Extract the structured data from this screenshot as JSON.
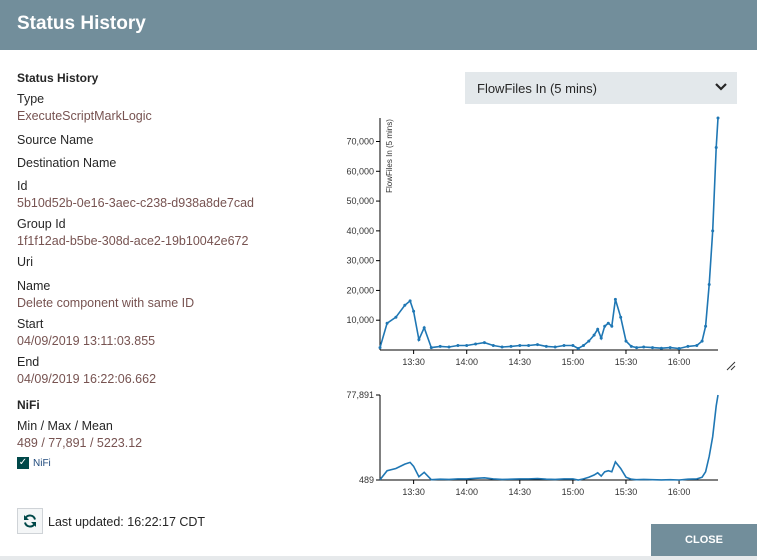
{
  "dialog": {
    "title": "Status History"
  },
  "details": {
    "section_title": "Status History",
    "type_label": "Type",
    "type_value": "ExecuteScriptMarkLogic",
    "source_label": "Source Name",
    "destination_label": "Destination Name",
    "id_label": "Id",
    "id_value": "5b10d52b-0e16-3aec-c238-d938a8de7cad",
    "group_label": "Group Id",
    "group_value": "1f1f12ad-b5be-308d-ace2-19b10042e672",
    "uri_label": "Uri",
    "name_label": "Name",
    "name_value": "Delete component with same ID",
    "start_label": "Start",
    "start_value": "04/09/2019 13:11:03.855",
    "end_label": "End",
    "end_value": "04/09/2019 16:22:06.662"
  },
  "nifi": {
    "section_title": "NiFi",
    "stats_label": "Min / Max / Mean",
    "stats_value": "489 / 77,891 / 5223.12",
    "legend_label": "NiFi",
    "legend_checked": true
  },
  "metric_select": {
    "selected": "FlowFiles In (5 mins)"
  },
  "footer": {
    "last_updated_label": "Last updated:",
    "last_updated_value": "16:22:17 CDT",
    "close_label": "CLOSE"
  },
  "colors": {
    "header": "#728e9b",
    "series": "#1f77b4",
    "value_text": "#775351"
  },
  "icons": {
    "refresh": "refresh-icon",
    "dropdown": "chevron-down-icon",
    "resize": "resize-handle-icon",
    "checkbox": "check-icon"
  },
  "chart_data": [
    {
      "type": "line",
      "ylabel": "FlowFiles In (5 mins)",
      "yticks": [
        10000,
        20000,
        30000,
        40000,
        50000,
        60000,
        70000
      ],
      "ytick_labels": [
        "10,000",
        "20,000",
        "30,000",
        "40,000",
        "50,000",
        "60,000",
        "70,000"
      ],
      "xticks": [
        "13:30",
        "14:00",
        "14:30",
        "15:00",
        "15:30",
        "16:00"
      ],
      "xlim": [
        "13:11",
        "16:22"
      ],
      "ylim": [
        0,
        77891
      ],
      "series": [
        {
          "x": [
            "13:11",
            "13:15",
            "13:20",
            "13:25",
            "13:28",
            "13:30",
            "13:33",
            "13:36",
            "13:40",
            "13:45",
            "13:50",
            "13:55",
            "14:00",
            "14:05",
            "14:10",
            "14:15",
            "14:20",
            "14:25",
            "14:30",
            "14:35",
            "14:40",
            "14:45",
            "14:50",
            "14:55",
            "15:00",
            "15:03",
            "15:06",
            "15:09",
            "15:12",
            "15:14",
            "15:16",
            "15:18",
            "15:20",
            "15:22",
            "15:24",
            "15:27",
            "15:30",
            "15:33",
            "15:36",
            "15:40",
            "15:45",
            "15:50",
            "15:55",
            "16:00",
            "16:05",
            "16:10",
            "16:13",
            "16:15",
            "16:17",
            "16:19",
            "16:21",
            "16:22"
          ],
          "values": [
            800,
            9000,
            11000,
            15000,
            16500,
            13000,
            3500,
            7500,
            800,
            1200,
            1000,
            1500,
            1500,
            2000,
            2500,
            1500,
            1000,
            1200,
            1500,
            1500,
            1800,
            1200,
            1000,
            1500,
            1500,
            500,
            1500,
            3000,
            5000,
            7000,
            4000,
            8000,
            9000,
            8000,
            17000,
            11000,
            3000,
            1200,
            800,
            1000,
            800,
            600,
            800,
            500,
            1200,
            1500,
            3000,
            8000,
            22000,
            40000,
            68000,
            77891
          ]
        }
      ]
    },
    {
      "type": "line",
      "yticks": [
        489,
        77891
      ],
      "ytick_labels": [
        "489",
        "77,891"
      ],
      "xticks": [
        "13:30",
        "14:00",
        "14:30",
        "15:00",
        "15:30",
        "16:00"
      ],
      "xlim": [
        "13:11",
        "16:22"
      ],
      "ylim": [
        489,
        77891
      ],
      "series": [
        {
          "x": [
            "13:11",
            "13:15",
            "13:20",
            "13:25",
            "13:28",
            "13:30",
            "13:33",
            "13:36",
            "13:40",
            "13:45",
            "13:50",
            "13:55",
            "14:00",
            "14:05",
            "14:10",
            "14:15",
            "14:20",
            "14:25",
            "14:30",
            "14:35",
            "14:40",
            "14:45",
            "14:50",
            "14:55",
            "15:00",
            "15:03",
            "15:06",
            "15:09",
            "15:12",
            "15:14",
            "15:16",
            "15:18",
            "15:20",
            "15:22",
            "15:24",
            "15:27",
            "15:30",
            "15:33",
            "15:36",
            "15:40",
            "15:45",
            "15:50",
            "15:55",
            "16:00",
            "16:05",
            "16:10",
            "16:13",
            "16:15",
            "16:17",
            "16:19",
            "16:21",
            "16:22"
          ],
          "values": [
            800,
            9000,
            11000,
            15000,
            16500,
            13000,
            3500,
            7500,
            800,
            1200,
            1000,
            1500,
            1500,
            2000,
            2500,
            1500,
            1000,
            1200,
            1500,
            1500,
            1800,
            1200,
            1000,
            1500,
            1500,
            500,
            1500,
            3000,
            5000,
            7000,
            4000,
            8000,
            9000,
            8000,
            17000,
            11000,
            3000,
            1200,
            800,
            1000,
            800,
            600,
            800,
            500,
            1200,
            1500,
            3000,
            8000,
            22000,
            40000,
            68000,
            77891
          ]
        }
      ]
    }
  ]
}
